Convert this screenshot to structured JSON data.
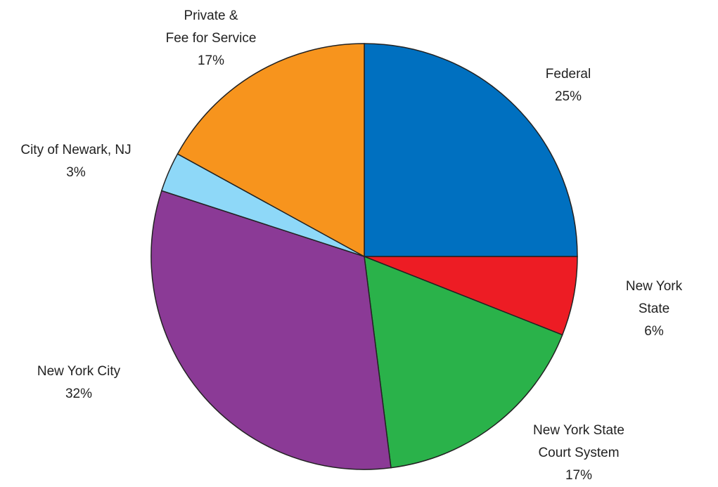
{
  "chart_data": {
    "type": "pie",
    "categories": [
      "Federal",
      "New York State",
      "New York State\nCourt System",
      "New York City",
      "City of Newark, NJ",
      "Private &\nFee for Service"
    ],
    "values": [
      25,
      6,
      17,
      32,
      3,
      17
    ],
    "value_labels": [
      "25%",
      "6%",
      "17%",
      "32%",
      "3%",
      "17%"
    ],
    "colors": [
      "#0070c0",
      "#ed1c24",
      "#2ab24a",
      "#8b3a96",
      "#8ed8f8",
      "#f7941d"
    ]
  }
}
